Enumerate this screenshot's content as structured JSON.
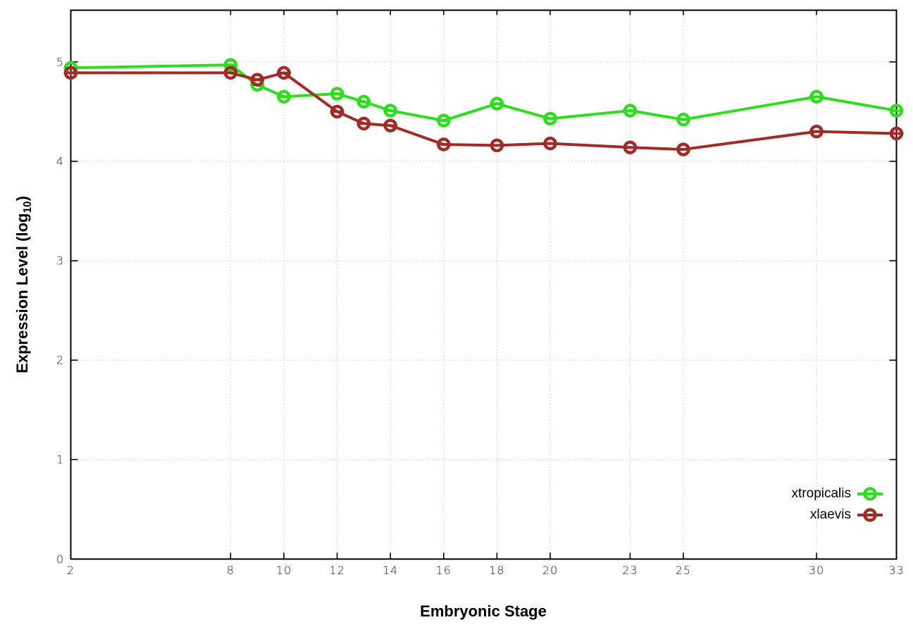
{
  "chart_data": {
    "type": "line",
    "title": "",
    "xlabel": "Embryonic Stage",
    "ylabel_pre": "Expression Level (log",
    "ylabel_sub": "10",
    "ylabel_post": ")",
    "x": [
      2,
      8,
      9,
      10,
      12,
      13,
      14,
      16,
      18,
      20,
      23,
      25,
      30,
      33
    ],
    "xtick_labels": [
      "2",
      "8",
      "10",
      "12",
      "14",
      "16",
      "18",
      "20",
      "23",
      "25",
      "30",
      "33"
    ],
    "xtick_values": [
      2,
      8,
      10,
      12,
      14,
      16,
      18,
      20,
      23,
      25,
      30,
      33
    ],
    "ytick_labels": [
      "0",
      "1",
      "2",
      "3",
      "4",
      "5"
    ],
    "ytick_values": [
      0,
      1,
      2,
      3,
      4,
      5
    ],
    "xlim": [
      2,
      33
    ],
    "ylim": [
      0,
      5.52
    ],
    "grid": true,
    "marker": "open-circle-with-error-cap",
    "legend_position": "inside-bottom-right",
    "colors": {
      "background": "#ffffff",
      "grid": "#c6c6c6",
      "axis": "#000000",
      "tick_text": "#1c1c1c"
    },
    "series": [
      {
        "name": "xtropicalis",
        "color": "#2fdd1f",
        "values": [
          4.94,
          4.97,
          4.77,
          4.65,
          4.68,
          4.6,
          4.51,
          4.41,
          4.58,
          4.43,
          4.51,
          4.42,
          4.65,
          4.51
        ]
      },
      {
        "name": "xlaevis",
        "color": "#a02c28",
        "values": [
          4.89,
          4.89,
          4.82,
          4.89,
          4.5,
          4.38,
          4.36,
          4.17,
          4.16,
          4.18,
          4.14,
          4.12,
          4.3,
          4.28
        ]
      }
    ]
  }
}
